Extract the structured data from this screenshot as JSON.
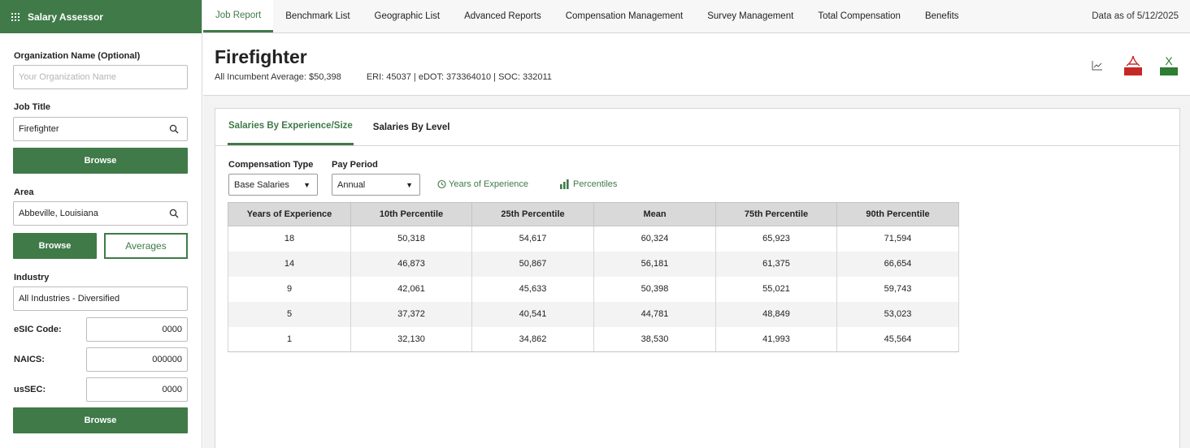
{
  "app": {
    "title": "Salary Assessor"
  },
  "sidebar": {
    "org_label": "Organization Name (Optional)",
    "org_placeholder": "Your Organization Name",
    "job_label": "Job Title",
    "job_value": "Firefighter",
    "browse_label": "Browse",
    "area_label": "Area",
    "area_value": "Abbeville, Louisiana",
    "averages_label": "Averages",
    "industry_label": "Industry",
    "industry_value": "All Industries - Diversified",
    "esic_label": "eSIC Code:",
    "esic_value": "0000",
    "naics_label": "NAICS:",
    "naics_value": "000000",
    "ussec_label": "usSEC:",
    "ussec_value": "0000"
  },
  "nav": {
    "tabs": [
      "Job Report",
      "Benchmark List",
      "Geographic List",
      "Advanced Reports",
      "Compensation Management",
      "Survey Management",
      "Total Compensation",
      "Benefits"
    ],
    "active_tab": "Job Report",
    "as_of": "Data as of 5/12/2025"
  },
  "header": {
    "title": "Firefighter",
    "average": "All Incumbent Average: $50,398",
    "codes": "ERI: 45037 | eDOT: 373364010 | SOC: 332011",
    "icons": [
      "chart-icon",
      "pdf-icon",
      "excel-icon"
    ],
    "pdf_text": "PDF",
    "excel_text": "EXCEL",
    "excel_letter": "X"
  },
  "subtabs": [
    "Salaries By Experience/Size",
    "Salaries By Level"
  ],
  "filters": {
    "comp_label": "Compensation Type",
    "comp_value": "Base Salaries",
    "pay_label": "Pay Period",
    "pay_value": "Annual",
    "years_toggle": "Years of Experience",
    "percentiles_toggle": "Percentiles"
  },
  "table": {
    "headers": [
      "Years of Experience",
      "10th Percentile",
      "25th Percentile",
      "Mean",
      "75th Percentile",
      "90th Percentile"
    ],
    "rows": [
      [
        "18",
        "50,318",
        "54,617",
        "60,324",
        "65,923",
        "71,594"
      ],
      [
        "14",
        "46,873",
        "50,867",
        "56,181",
        "61,375",
        "66,654"
      ],
      [
        "9",
        "42,061",
        "45,633",
        "50,398",
        "55,021",
        "59,743"
      ],
      [
        "5",
        "37,372",
        "40,541",
        "44,781",
        "48,849",
        "53,023"
      ],
      [
        "1",
        "32,130",
        "34,862",
        "38,530",
        "41,993",
        "45,564"
      ]
    ]
  },
  "colors": {
    "brand_green": "#3f7a48",
    "table_header": "#d9d9d9",
    "pdf_red": "#c62828"
  }
}
